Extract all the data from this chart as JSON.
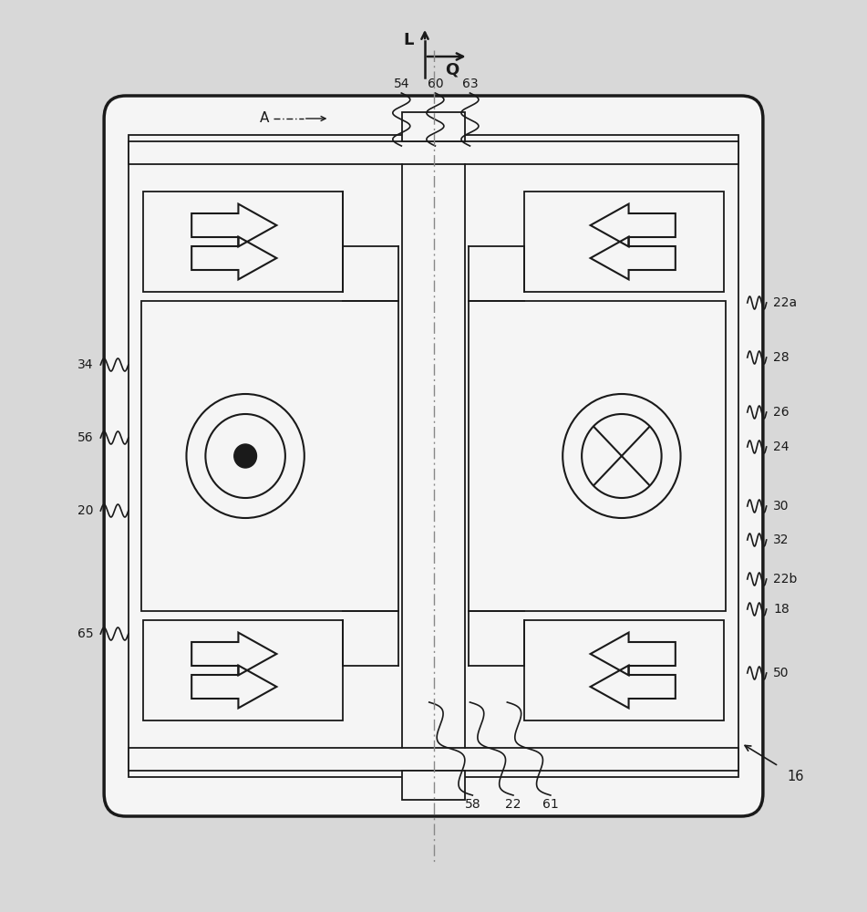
{
  "bg_color": "#d8d8d8",
  "lc": "#1a1a1a",
  "wc": "#f5f5f5",
  "fig_w": 9.51,
  "fig_h": 10.0,
  "right_labels": [
    [
      "50",
      0.262
    ],
    [
      "18",
      0.332
    ],
    [
      "22b",
      0.365
    ],
    [
      "32",
      0.408
    ],
    [
      "30",
      0.445
    ],
    [
      "24",
      0.51
    ],
    [
      "26",
      0.548
    ],
    [
      "28",
      0.608
    ],
    [
      "22a",
      0.668
    ]
  ],
  "left_labels": [
    [
      "65",
      0.305
    ],
    [
      "20",
      0.44
    ],
    [
      "56",
      0.52
    ],
    [
      "34",
      0.6
    ]
  ],
  "top_labels": [
    [
      "58",
      0.545
    ],
    [
      "22",
      0.592
    ],
    [
      "61",
      0.635
    ]
  ],
  "bot_labels": [
    [
      "54",
      0.463
    ],
    [
      "60",
      0.502
    ],
    [
      "63",
      0.542
    ]
  ]
}
